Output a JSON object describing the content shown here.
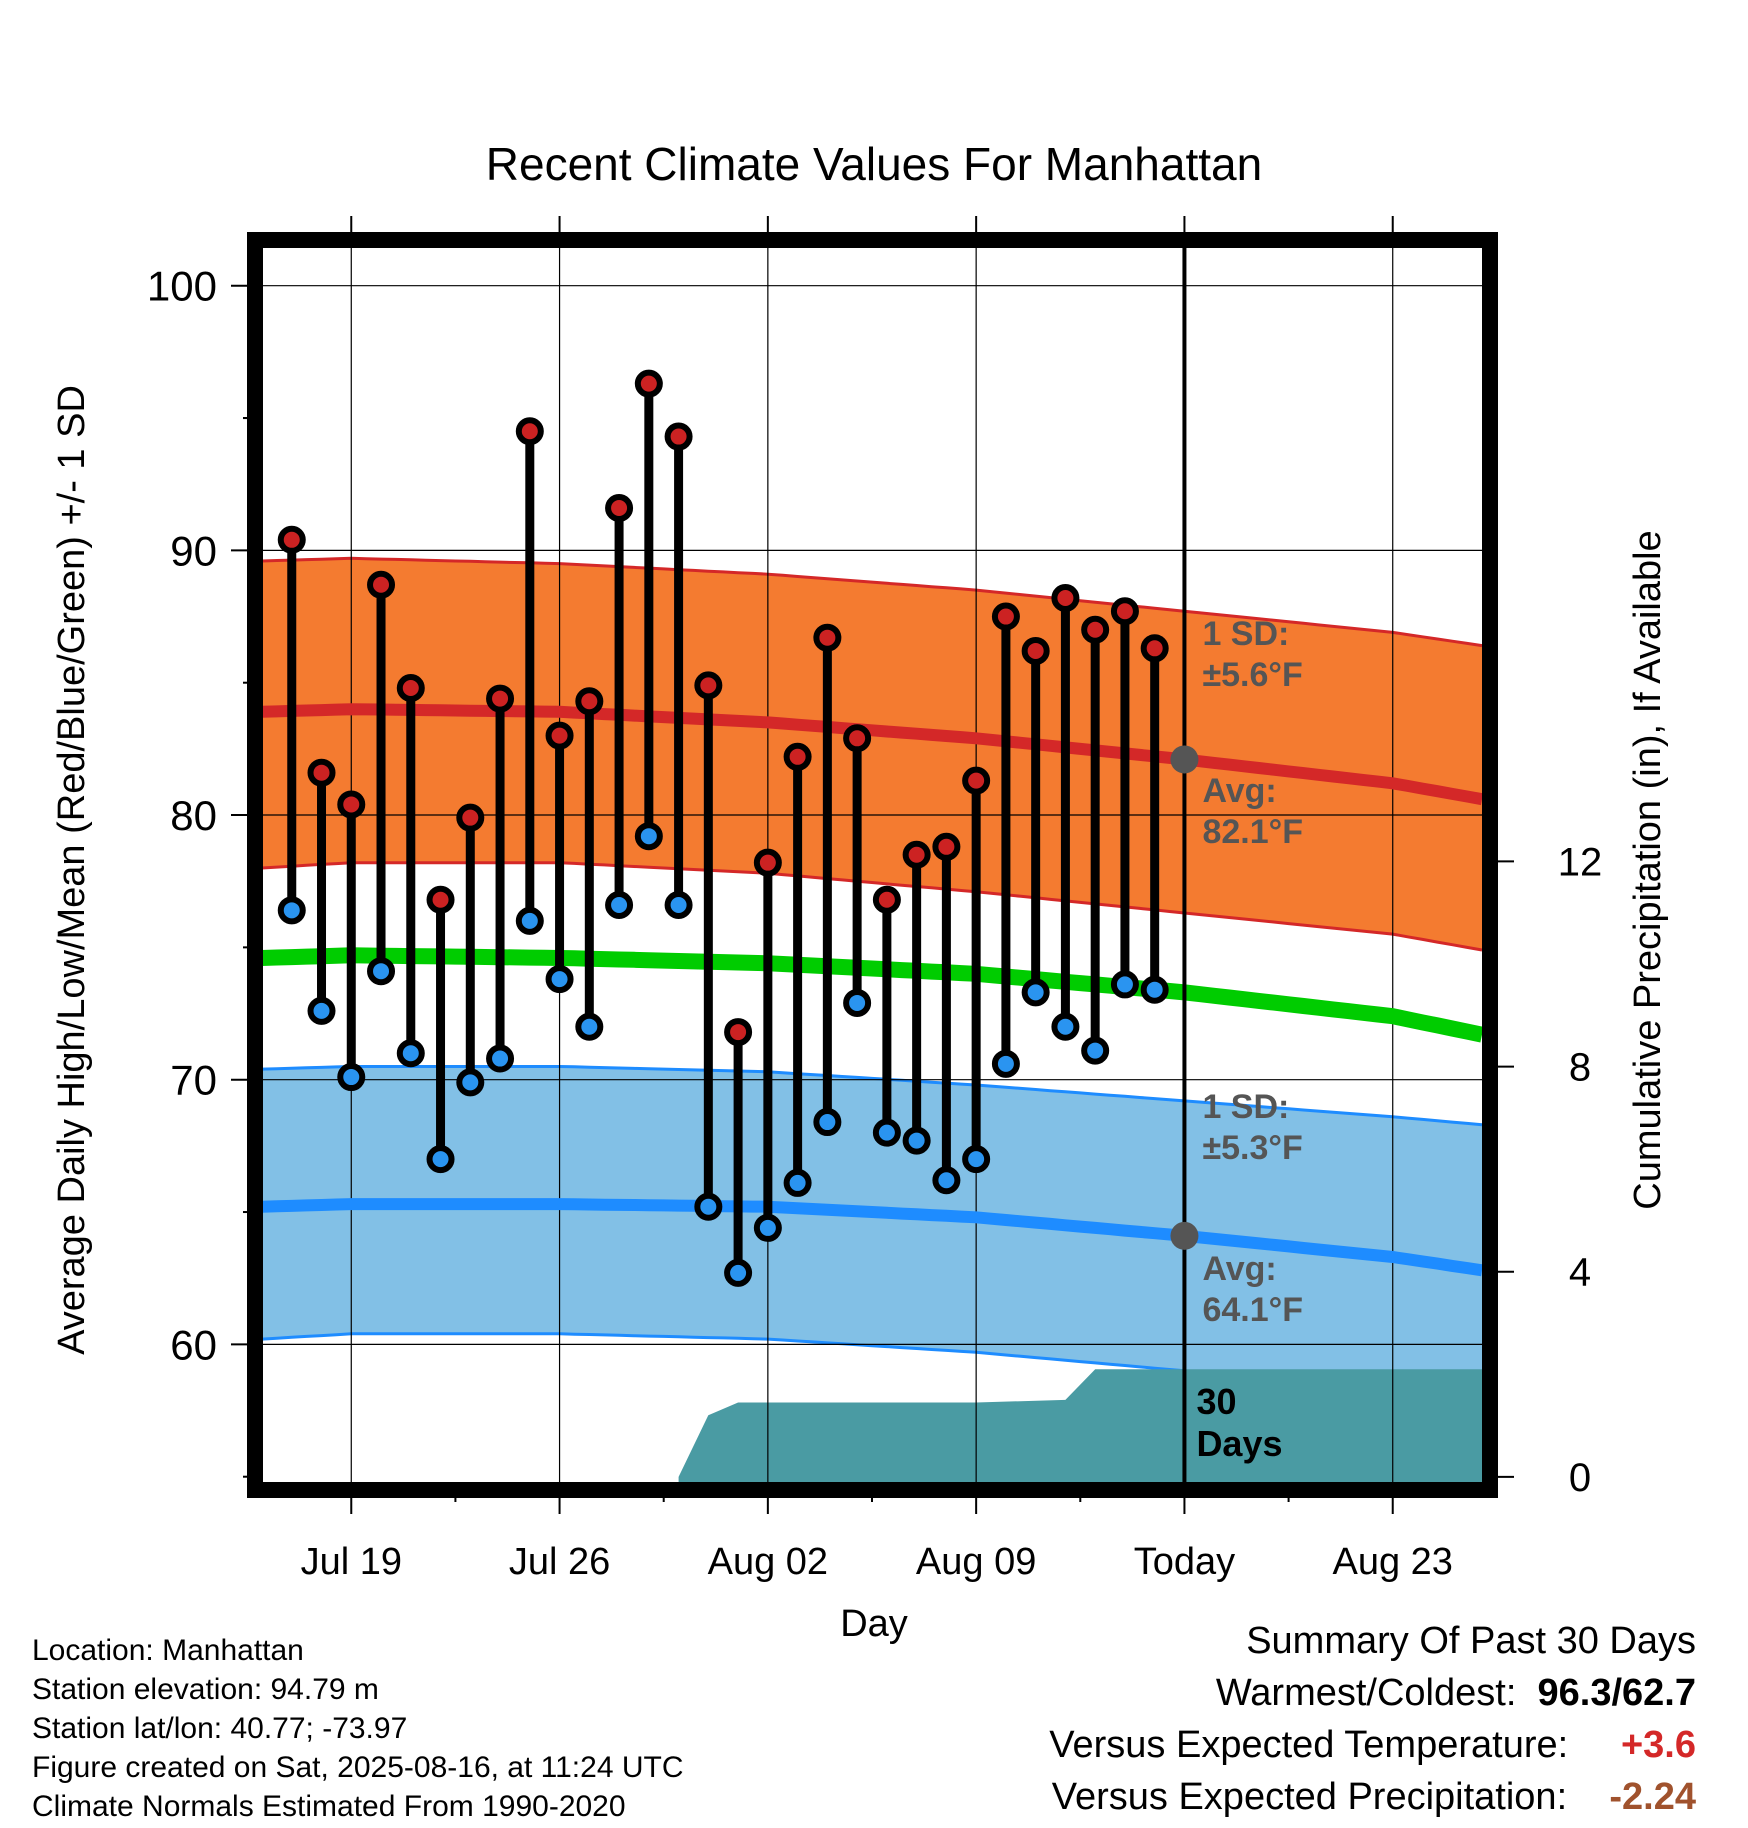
{
  "chart_data": {
    "type": "line",
    "title": "Recent Climate Values For Manhattan",
    "xlabel": "Day",
    "ylabel": "Average Daily High/Low/Mean (Red/Blue/Green) +/- 1 SD",
    "y2label": "Cumulative Precipitation (in), If Available",
    "ylim": [
      54.8,
      101.5
    ],
    "y2lim": [
      -0.1,
      24
    ],
    "xlim": [
      "2025-07-16",
      "2025-08-26"
    ],
    "x_ticks": [
      {
        "date": "2025-07-19",
        "label": "Jul 19"
      },
      {
        "date": "2025-07-26",
        "label": "Jul 26"
      },
      {
        "date": "2025-08-02",
        "label": "Aug 02"
      },
      {
        "date": "2025-08-09",
        "label": "Aug 09"
      },
      {
        "date": "2025-08-16",
        "label": "Today"
      },
      {
        "date": "2025-08-23",
        "label": "Aug 23"
      }
    ],
    "y_ticks": [
      "100",
      "90",
      "80",
      "70",
      "60"
    ],
    "y2_ticks": [
      "12",
      "8",
      "4",
      "0"
    ],
    "grid": true,
    "today": "2025-08-16",
    "observed": [
      {
        "date": "2025-07-17",
        "high": 90.4,
        "low": 76.4
      },
      {
        "date": "2025-07-18",
        "high": 81.6,
        "low": 72.6
      },
      {
        "date": "2025-07-19",
        "high": 80.4,
        "low": 70.1
      },
      {
        "date": "2025-07-20",
        "high": 88.7,
        "low": 74.1
      },
      {
        "date": "2025-07-21",
        "high": 84.8,
        "low": 71.0
      },
      {
        "date": "2025-07-22",
        "high": 76.8,
        "low": 67.0
      },
      {
        "date": "2025-07-23",
        "high": 79.9,
        "low": 69.9
      },
      {
        "date": "2025-07-24",
        "high": 84.4,
        "low": 70.8
      },
      {
        "date": "2025-07-25",
        "high": 94.5,
        "low": 76.0
      },
      {
        "date": "2025-07-26",
        "high": 83.0,
        "low": 73.8
      },
      {
        "date": "2025-07-27",
        "high": 84.3,
        "low": 72.0
      },
      {
        "date": "2025-07-28",
        "high": 91.6,
        "low": 76.6
      },
      {
        "date": "2025-07-29",
        "high": 96.3,
        "low": 79.2
      },
      {
        "date": "2025-07-30",
        "high": 94.3,
        "low": 76.6
      },
      {
        "date": "2025-07-31",
        "high": 84.9,
        "low": 65.2
      },
      {
        "date": "2025-08-01",
        "high": 71.8,
        "low": 62.7
      },
      {
        "date": "2025-08-02",
        "high": 78.2,
        "low": 64.4
      },
      {
        "date": "2025-08-03",
        "high": 82.2,
        "low": 66.1
      },
      {
        "date": "2025-08-04",
        "high": 86.7,
        "low": 68.4
      },
      {
        "date": "2025-08-05",
        "high": 82.9,
        "low": 72.9
      },
      {
        "date": "2025-08-06",
        "high": 76.8,
        "low": 68.0
      },
      {
        "date": "2025-08-07",
        "high": 78.5,
        "low": 67.7
      },
      {
        "date": "2025-08-08",
        "high": 78.8,
        "low": 66.2
      },
      {
        "date": "2025-08-09",
        "high": 81.3,
        "low": 67.0
      },
      {
        "date": "2025-08-10",
        "high": 87.5,
        "low": 70.6
      },
      {
        "date": "2025-08-11",
        "high": 86.2,
        "low": 73.3
      },
      {
        "date": "2025-08-12",
        "high": 88.2,
        "low": 72.0
      },
      {
        "date": "2025-08-13",
        "high": 87.0,
        "low": 71.1
      },
      {
        "date": "2025-08-14",
        "high": 87.7,
        "low": 73.6
      },
      {
        "date": "2025-08-15",
        "high": 86.3,
        "low": 73.4
      }
    ],
    "normals": {
      "dates": [
        "2025-07-16",
        "2025-07-19",
        "2025-07-26",
        "2025-08-02",
        "2025-08-09",
        "2025-08-16",
        "2025-08-23",
        "2025-08-26"
      ],
      "high_avg": [
        83.9,
        84.0,
        83.9,
        83.5,
        82.9,
        82.1,
        81.2,
        80.6
      ],
      "high_upper": [
        89.6,
        89.7,
        89.5,
        89.1,
        88.5,
        87.7,
        86.9,
        86.4
      ],
      "high_lower": [
        78.0,
        78.2,
        78.2,
        77.8,
        77.1,
        76.3,
        75.5,
        74.9
      ],
      "mean_avg": [
        74.6,
        74.7,
        74.6,
        74.4,
        74.0,
        73.3,
        72.4,
        71.7
      ],
      "low_avg": [
        65.2,
        65.3,
        65.3,
        65.2,
        64.8,
        64.1,
        63.3,
        62.8
      ],
      "low_upper": [
        70.4,
        70.5,
        70.5,
        70.3,
        69.8,
        69.2,
        68.6,
        68.3
      ],
      "low_lower": [
        60.2,
        60.4,
        60.4,
        60.2,
        59.7,
        59.0,
        58.3,
        57.9
      ]
    },
    "precip_cumulative": {
      "dates": [
        "2025-07-30",
        "2025-07-31",
        "2025-08-01",
        "2025-08-09",
        "2025-08-12",
        "2025-08-13",
        "2025-08-26"
      ],
      "values": [
        0.0,
        1.2,
        1.45,
        1.45,
        1.5,
        2.1,
        2.1
      ]
    },
    "annotations": {
      "high_sd_label": "1 SD:",
      "high_sd_value": "±5.6°F",
      "high_avg_label": "Avg:",
      "high_avg_value": "82.1°F",
      "low_sd_label": "1 SD:",
      "low_sd_value": "±5.3°F",
      "low_avg_label": "Avg:",
      "low_avg_value": "64.1°F",
      "days_label_1": "30",
      "days_label_2": "Days"
    },
    "colors": {
      "high_band": "#f47b30",
      "high_line": "#d42828",
      "mean_line": "#00cc00",
      "low_band": "#82c0e6",
      "low_line": "#1e8cff",
      "precip": "#4a9ba3",
      "high_dot": "#cc2222",
      "low_dot": "#2a94f0",
      "marker": "#555555"
    }
  },
  "info": {
    "location": "Location: Manhattan",
    "elevation": "Station elevation: 94.79 m",
    "latlon": "Station lat/lon: 40.77; -73.97",
    "created": "Figure created on Sat, 2025-08-16, at 11:24 UTC",
    "normals": "Climate Normals Estimated From 1990-2020"
  },
  "summary": {
    "title": "Summary Of Past 30 Days",
    "warm_cold_label": "Warmest/Coldest:",
    "warm_cold_value": "96.3/62.7",
    "temp_label": "Versus Expected Temperature:",
    "temp_value": "+3.6",
    "temp_color": "#d42828",
    "precip_label": "Versus Expected Precipitation:",
    "precip_value": "-2.24",
    "precip_color": "#a0522d"
  }
}
